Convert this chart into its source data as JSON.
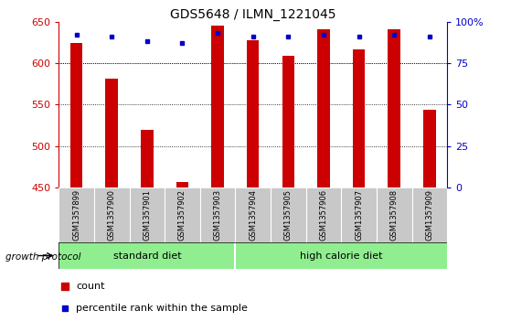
{
  "title": "GDS5648 / ILMN_1221045",
  "samples": [
    "GSM1357899",
    "GSM1357900",
    "GSM1357901",
    "GSM1357902",
    "GSM1357903",
    "GSM1357904",
    "GSM1357905",
    "GSM1357906",
    "GSM1357907",
    "GSM1357908",
    "GSM1357909"
  ],
  "counts": [
    624,
    581,
    520,
    457,
    645,
    627,
    609,
    641,
    617,
    641,
    544
  ],
  "percentiles": [
    92,
    91,
    88,
    87,
    93,
    91,
    91,
    92,
    91,
    92,
    91
  ],
  "group_labels": [
    "standard diet",
    "high calorie diet"
  ],
  "bar_color": "#CC0000",
  "dot_color": "#0000CC",
  "ylim_left": [
    450,
    650
  ],
  "ylim_right": [
    0,
    100
  ],
  "yticks_left": [
    450,
    500,
    550,
    600,
    650
  ],
  "yticks_right": [
    0,
    25,
    50,
    75,
    100
  ],
  "ylabel_right_labels": [
    "0",
    "25",
    "50",
    "75",
    "100%"
  ],
  "grid_values": [
    500,
    550,
    600
  ],
  "legend_count_label": "count",
  "legend_pct_label": "percentile rank within the sample",
  "protocol_label": "growth protocol",
  "bg_color_samples": "#C8C8C8",
  "bg_color_groups": "#90EE90",
  "standard_diet_count": 5,
  "high_calorie_count": 6
}
